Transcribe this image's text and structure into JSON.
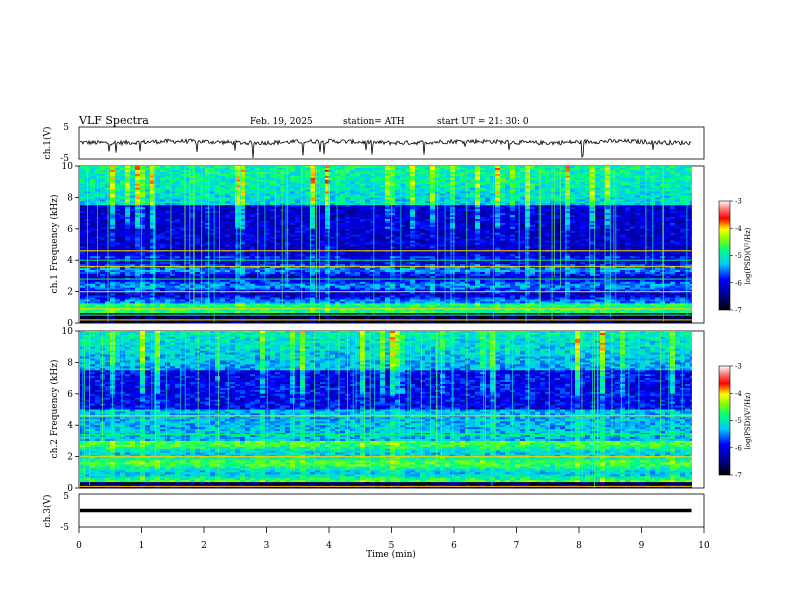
{
  "header": {
    "title": "VLF  Spectra",
    "date": "Feb. 19, 2025",
    "station": "station= ATH",
    "start": "start  UT  =    21: 30: 0"
  },
  "chart_data": [
    {
      "type": "line",
      "name": "ch1-waveform",
      "ylabel": "ch.1(V)",
      "ylim": [
        -5,
        5
      ],
      "yticks": [
        "5",
        "-5"
      ],
      "xlim": [
        0,
        10
      ],
      "data_end": 9.8,
      "baseline": 0.3
    },
    {
      "type": "heatmap",
      "name": "ch1-spectrogram",
      "ylabel": "ch.1 Frequency (kHz)",
      "ylim": [
        0,
        10
      ],
      "yticks": [
        "0",
        "2",
        "4",
        "6",
        "8",
        "10"
      ],
      "xlim": [
        0,
        10
      ],
      "data_end": 9.8,
      "colorbar": {
        "label": "log(PSD)(V²/Hz)",
        "range": [
          -7,
          -3
        ],
        "ticks": [
          "-3",
          "-4",
          "-5",
          "-6",
          "-7"
        ]
      },
      "bands_khz": [
        0.2,
        0.5,
        0.9,
        1.0,
        2.0,
        2.8,
        3.6,
        4.0,
        4.6
      ]
    },
    {
      "type": "heatmap",
      "name": "ch2-spectrogram",
      "ylabel": "ch.2 Frequency (kHz)",
      "ylim": [
        0,
        10
      ],
      "yticks": [
        "0",
        "2",
        "4",
        "6",
        "8",
        "10"
      ],
      "xlim": [
        0,
        10
      ],
      "data_end": 9.8,
      "colorbar": {
        "label": "log(PSD)(V²/Hz)",
        "range": [
          -7,
          -3
        ],
        "ticks": [
          "-3",
          "-4",
          "-5",
          "-6",
          "-7"
        ]
      },
      "bands_khz": [
        0.1,
        1.8,
        2.0,
        3.4,
        4.6
      ]
    },
    {
      "type": "line",
      "name": "ch3-waveform",
      "ylabel": "ch.3(V)",
      "ylim": [
        -5,
        5
      ],
      "yticks": [
        "5",
        "-5"
      ],
      "xlim": [
        0,
        10
      ],
      "data_end": 9.8,
      "baseline": 0.0
    }
  ],
  "x_axis": {
    "label": "Time  (min)",
    "ticks": [
      "0",
      "1",
      "2",
      "3",
      "4",
      "5",
      "6",
      "7",
      "8",
      "9",
      "10"
    ]
  }
}
